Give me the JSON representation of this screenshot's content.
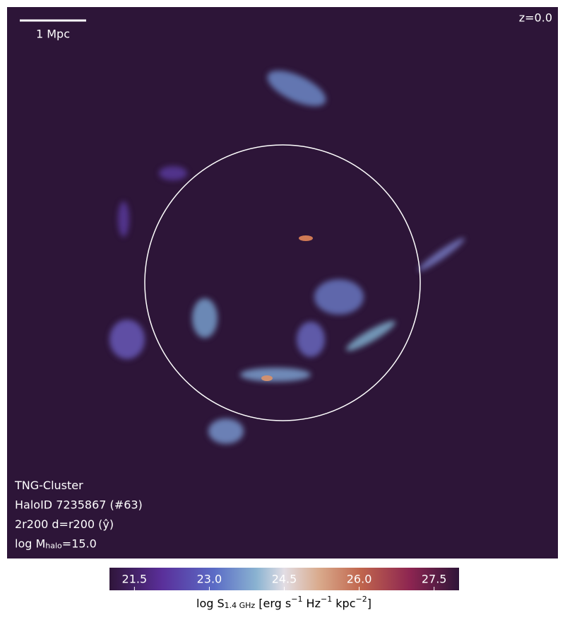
{
  "chart_data": {
    "type": "map",
    "scale_bar": "1 Mpc",
    "redshift": "z=0.0",
    "info": [
      [
        "TNG-Cluster"
      ],
      [
        "HaloID 7235867 (#63)"
      ],
      [
        "2r200 d=r200 (ŷ)"
      ],
      [
        "log M",
        "halo",
        "=15.0"
      ]
    ],
    "colorbar": {
      "label": [
        "log S",
        "1.4 GHz",
        " [erg s",
        "−1",
        " Hz",
        "−1",
        " kpc",
        "−2",
        "]"
      ],
      "lim": [
        21,
        28
      ],
      "ticks": [
        21.5,
        {
          "value": 23,
          "label": "23.0"
        },
        24.5,
        {
          "value": 26,
          "label": "26.0"
        },
        27.5
      ]
    }
  }
}
